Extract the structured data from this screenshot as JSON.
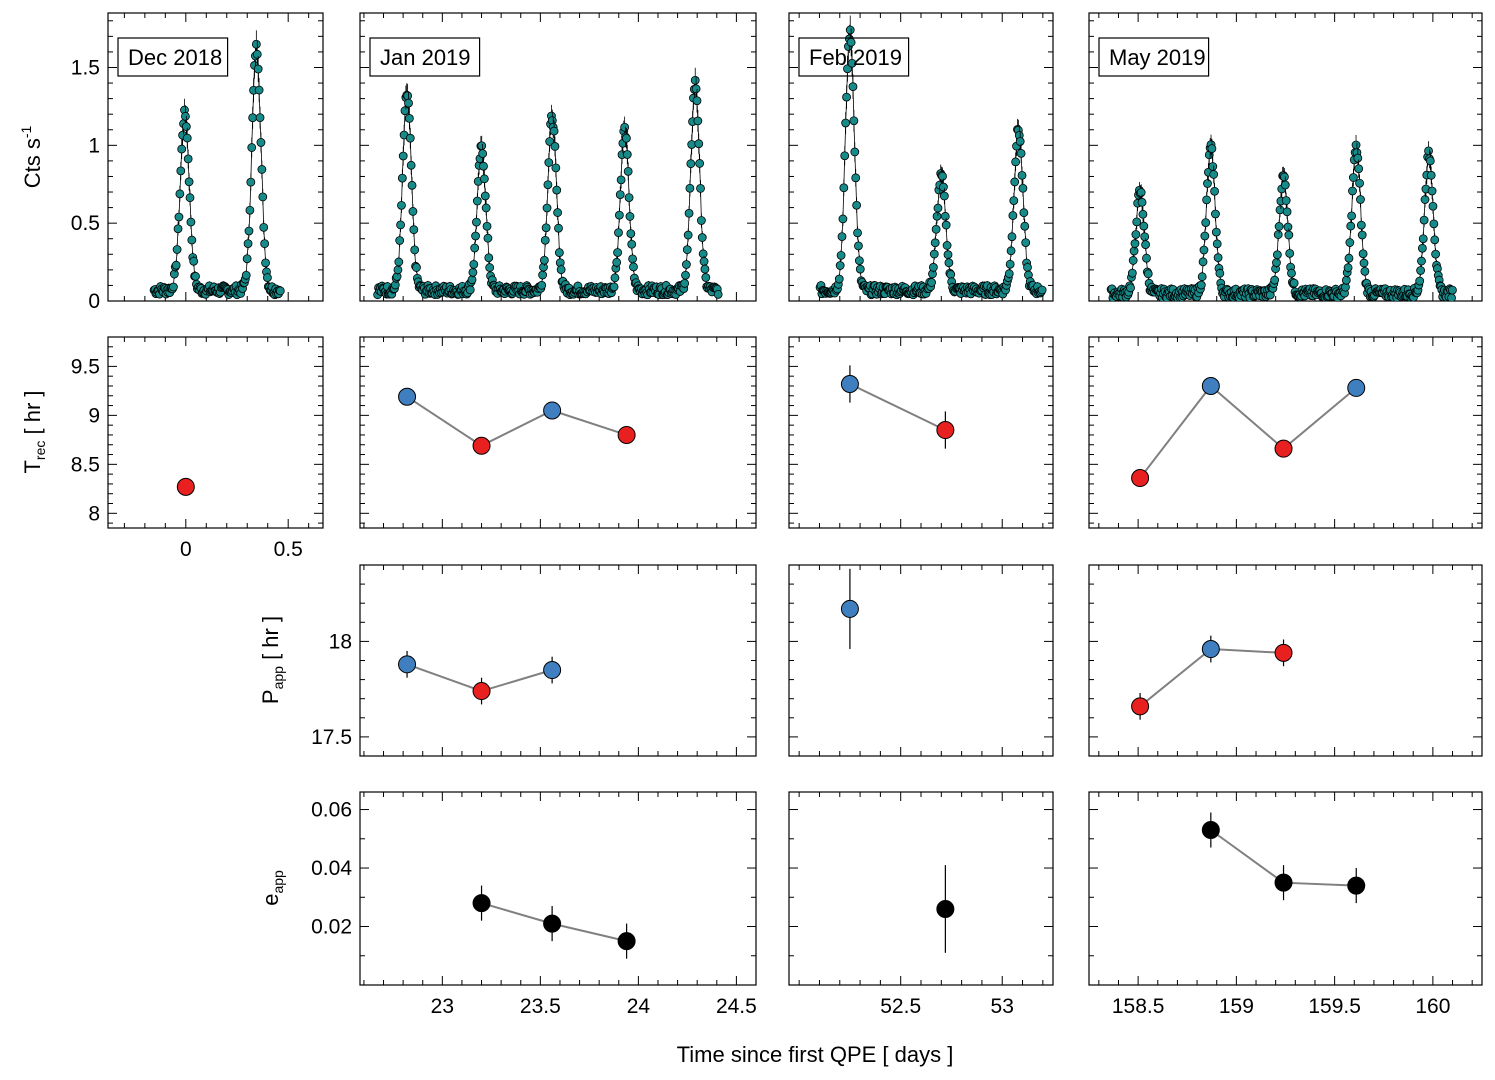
{
  "figure": {
    "xlabel": "Time since first QPE [ days ]",
    "row_labels": {
      "counts": {
        "main": "Cts s",
        "sup": "-1"
      },
      "trec": {
        "main": "T",
        "sub": "rec",
        "suffix": " [ hr ]"
      },
      "papp": {
        "main": "P",
        "sub": "app",
        "suffix": " [ hr ]"
      },
      "eapp": {
        "main": "e",
        "sub": "app",
        "suffix": ""
      }
    },
    "panel_titles": [
      "Dec 2018",
      "Jan 2019",
      "Feb 2019",
      "May 2019"
    ],
    "colors": {
      "teal_marker": "#178a8a",
      "blue_marker": "#3f7fbf",
      "red_marker": "#e8201f",
      "black_marker": "#000000",
      "connector_line": "#808080"
    },
    "x_ticks": {
      "dec": [
        "0",
        "0.5"
      ],
      "jan": [
        "23",
        "23.5",
        "24",
        "24.5"
      ],
      "feb": [
        "52.5",
        "53"
      ],
      "may": [
        "158.5",
        "159",
        "159.5",
        "160"
      ]
    },
    "y_ticks": {
      "counts": [
        "0",
        "0.5",
        "1",
        "1.5"
      ],
      "trec": [
        "8",
        "8.5",
        "9",
        "9.5"
      ],
      "papp": [
        "17.5",
        "18"
      ],
      "eapp": [
        "0.02",
        "0.04",
        "0.06"
      ]
    }
  },
  "chart_data": [
    {
      "type": "scatter",
      "panel": "counts",
      "description_of_values": "QPE light curve, count rate vs time (days); eruptions peak values listed",
      "ylabel": "Cts s-1",
      "ylim": [
        0,
        1.85
      ],
      "months": [
        {
          "title": "Dec 2018",
          "xlim": [
            -0.38,
            0.67
          ],
          "quiescent_level": 0.07,
          "peaks": [
            {
              "t": -0.005,
              "peak": 1.2
            },
            {
              "t": 0.345,
              "peak": 1.63
            }
          ]
        },
        {
          "title": "Jan 2019",
          "xlim": [
            22.58,
            24.6
          ],
          "quiescent_level": 0.07,
          "peaks": [
            {
              "t": 22.82,
              "peak": 1.33
            },
            {
              "t": 23.2,
              "peak": 0.98
            },
            {
              "t": 23.56,
              "peak": 1.18
            },
            {
              "t": 23.93,
              "peak": 1.1
            },
            {
              "t": 24.29,
              "peak": 1.4
            }
          ]
        },
        {
          "title": "Feb 2019",
          "xlim": [
            51.95,
            53.25
          ],
          "quiescent_level": 0.07,
          "peaks": [
            {
              "t": 52.25,
              "peak": 1.72
            },
            {
              "t": 52.7,
              "peak": 0.8
            },
            {
              "t": 53.08,
              "peak": 1.1
            }
          ]
        },
        {
          "title": "May 2019",
          "xlim": [
            158.25,
            160.25
          ],
          "quiescent_level": 0.05,
          "peaks": [
            {
              "t": 158.51,
              "peak": 0.7
            },
            {
              "t": 158.87,
              "peak": 0.98
            },
            {
              "t": 159.24,
              "peak": 0.8
            },
            {
              "t": 159.61,
              "peak": 0.98
            },
            {
              "t": 159.98,
              "peak": 0.94
            }
          ]
        }
      ]
    },
    {
      "type": "line",
      "panel": "trec",
      "ylabel": "Trec [ hr ]",
      "ylim": [
        7.85,
        9.8
      ],
      "months": [
        {
          "title": "Dec 2018",
          "points": [
            {
              "x": 0.0,
              "y": 8.27,
              "err": 0.03,
              "color": "red"
            }
          ],
          "connect": false
        },
        {
          "title": "Jan 2019",
          "points": [
            {
              "x": 22.82,
              "y": 9.19,
              "err": 0.03,
              "color": "blue"
            },
            {
              "x": 23.2,
              "y": 8.69,
              "err": 0.03,
              "color": "red"
            },
            {
              "x": 23.56,
              "y": 9.05,
              "err": 0.03,
              "color": "blue"
            },
            {
              "x": 23.94,
              "y": 8.8,
              "err": 0.03,
              "color": "red"
            }
          ],
          "connect": true
        },
        {
          "title": "Feb 2019",
          "points": [
            {
              "x": 52.25,
              "y": 9.32,
              "err": 0.19,
              "color": "blue"
            },
            {
              "x": 52.72,
              "y": 8.85,
              "err": 0.19,
              "color": "red"
            }
          ],
          "connect": true
        },
        {
          "title": "May 2019",
          "points": [
            {
              "x": 158.51,
              "y": 8.36,
              "err": 0.04,
              "color": "red"
            },
            {
              "x": 158.87,
              "y": 9.3,
              "err": 0.04,
              "color": "blue"
            },
            {
              "x": 159.24,
              "y": 8.66,
              "err": 0.04,
              "color": "red"
            },
            {
              "x": 159.61,
              "y": 9.28,
              "err": 0.04,
              "color": "blue"
            }
          ],
          "connect": true
        }
      ]
    },
    {
      "type": "line",
      "panel": "papp",
      "ylabel": "Papp [ hr ]",
      "ylim": [
        17.4,
        18.4
      ],
      "months": [
        {
          "title": "Jan 2019",
          "points": [
            {
              "x": 22.82,
              "y": 17.88,
              "err": 0.07,
              "color": "blue"
            },
            {
              "x": 23.2,
              "y": 17.74,
              "err": 0.07,
              "color": "red"
            },
            {
              "x": 23.56,
              "y": 17.85,
              "err": 0.07,
              "color": "blue"
            }
          ],
          "connect": true
        },
        {
          "title": "Feb 2019",
          "points": [
            {
              "x": 52.25,
              "y": 18.17,
              "err": 0.21,
              "color": "blue"
            }
          ],
          "connect": false
        },
        {
          "title": "May 2019",
          "points": [
            {
              "x": 158.51,
              "y": 17.66,
              "err": 0.07,
              "color": "red"
            },
            {
              "x": 158.87,
              "y": 17.96,
              "err": 0.07,
              "color": "blue"
            },
            {
              "x": 159.24,
              "y": 17.94,
              "err": 0.07,
              "color": "red"
            }
          ],
          "connect": true
        }
      ]
    },
    {
      "type": "line",
      "panel": "eapp",
      "ylabel": "eapp",
      "ylim": [
        0.0,
        0.066
      ],
      "months": [
        {
          "title": "Jan 2019",
          "points": [
            {
              "x": 23.2,
              "y": 0.028,
              "err": 0.006
            },
            {
              "x": 23.56,
              "y": 0.021,
              "err": 0.006
            },
            {
              "x": 23.94,
              "y": 0.015,
              "err": 0.006
            }
          ],
          "connect": true
        },
        {
          "title": "Feb 2019",
          "points": [
            {
              "x": 52.72,
              "y": 0.026,
              "err": 0.015
            }
          ],
          "connect": false
        },
        {
          "title": "May 2019",
          "points": [
            {
              "x": 158.87,
              "y": 0.053,
              "err": 0.006
            },
            {
              "x": 159.24,
              "y": 0.035,
              "err": 0.006
            },
            {
              "x": 159.61,
              "y": 0.034,
              "err": 0.006
            }
          ],
          "connect": true
        }
      ]
    }
  ]
}
